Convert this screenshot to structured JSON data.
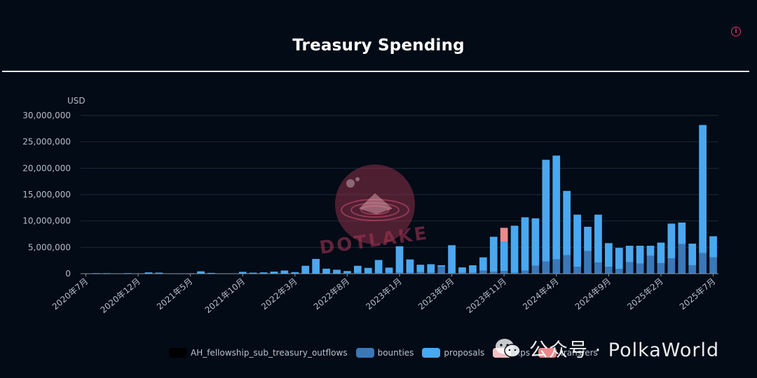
{
  "header": {
    "title": "Treasury Spending",
    "info_icon": "info-icon"
  },
  "chart_data": {
    "type": "bar",
    "stacked": true,
    "ylabel": "USD",
    "ylim": [
      0,
      30000000
    ],
    "yticks": [
      "0",
      "5,000,000",
      "10,000,000",
      "15,000,000",
      "20,000,000",
      "25,000,000",
      "30,000,000"
    ],
    "yticks_values": [
      0,
      5000000,
      10000000,
      15000000,
      20000000,
      25000000,
      30000000
    ],
    "xtick_labels": [
      "2020年7月",
      "2020年12月",
      "2021年5月",
      "2021年10月",
      "2022年3月",
      "2022年8月",
      "2023年1月",
      "2023年6月",
      "2023年11月",
      "2024年4月",
      "2024年9月",
      "2025年2月",
      "2025年7月"
    ],
    "xtick_every": 5,
    "grid": true,
    "legend_position": "bottom",
    "series": [
      {
        "name": "AH_fellowship_sub_treasury_outflows",
        "color": "#000000",
        "values": [
          0,
          0,
          0,
          0,
          0,
          0,
          0,
          0,
          0,
          0,
          0,
          0,
          0,
          0,
          0,
          0,
          0,
          0,
          0,
          0,
          0,
          0,
          0,
          0,
          0,
          0,
          0,
          0,
          0,
          0,
          0,
          0,
          0,
          0,
          0,
          0,
          0,
          0,
          0,
          0,
          0,
          0,
          0,
          0,
          0,
          0,
          0,
          0,
          0,
          0,
          0,
          0,
          0,
          0,
          0,
          0,
          0,
          0,
          0,
          0,
          0
        ]
      },
      {
        "name": "bounties",
        "color": "#3b78b8",
        "values": [
          0,
          0,
          0,
          0,
          0,
          0,
          0,
          0,
          0,
          0,
          0,
          0,
          0,
          0,
          0,
          0,
          0,
          0,
          0,
          0,
          0,
          0,
          0,
          0,
          0,
          100000,
          150000,
          100000,
          100000,
          150000,
          200000,
          200000,
          300000,
          200000,
          1300000,
          100000,
          200000,
          200000,
          600000,
          400000,
          500000,
          200000,
          600000,
          1500000,
          2300000,
          2700000,
          3500000,
          1300000,
          4300000,
          2100000,
          1300000,
          900000,
          2200000,
          1900000,
          3400000,
          2000000,
          2900000,
          5600000,
          1600000,
          3900000,
          3100000
        ]
      },
      {
        "name": "proposals",
        "color": "#4aa8f0",
        "values": [
          50000,
          100000,
          100000,
          50000,
          100000,
          50000,
          250000,
          200000,
          50000,
          30000,
          20000,
          450000,
          150000,
          50000,
          50000,
          350000,
          200000,
          250000,
          400000,
          600000,
          300000,
          1500000,
          2800000,
          950000,
          750000,
          400000,
          1350000,
          1000000,
          2500000,
          1000000,
          5000000,
          2500000,
          1400000,
          1600000,
          300000,
          5300000,
          1000000,
          1400000,
          2500000,
          6600000,
          5600000,
          8900000,
          10100000,
          9000000,
          19300000,
          19700000,
          12200000,
          9900000,
          4600000,
          9100000,
          4500000,
          4000000,
          3100000,
          3400000,
          1900000,
          3900000,
          6600000,
          4100000,
          4100000,
          24300000,
          4000000
        ]
      },
      {
        "name": "tips",
        "color": "#f2c0c3",
        "values": [
          0,
          0,
          0,
          0,
          0,
          0,
          0,
          0,
          0,
          0,
          0,
          0,
          0,
          0,
          0,
          0,
          0,
          0,
          0,
          0,
          0,
          0,
          0,
          0,
          0,
          0,
          0,
          0,
          0,
          0,
          0,
          0,
          0,
          0,
          0,
          0,
          0,
          0,
          0,
          0,
          0,
          0,
          0,
          0,
          0,
          0,
          0,
          0,
          0,
          0,
          0,
          0,
          0,
          0,
          0,
          0,
          0,
          0,
          0,
          0,
          0
        ]
      },
      {
        "name": "transfers",
        "color": "#e88a8c",
        "values": [
          0,
          0,
          0,
          0,
          0,
          0,
          0,
          0,
          0,
          0,
          0,
          0,
          0,
          0,
          0,
          0,
          0,
          0,
          0,
          0,
          0,
          0,
          0,
          0,
          0,
          0,
          0,
          0,
          0,
          0,
          0,
          0,
          0,
          0,
          0,
          0,
          0,
          0,
          0,
          0,
          2600000,
          0,
          0,
          0,
          0,
          0,
          0,
          0,
          0,
          0,
          0,
          0,
          0,
          0,
          0,
          0,
          0,
          0,
          0,
          0,
          0
        ]
      }
    ]
  },
  "watermarks": {
    "center": "DOTLAKE",
    "bottom_right": "公众号 · PolkaWorld"
  }
}
